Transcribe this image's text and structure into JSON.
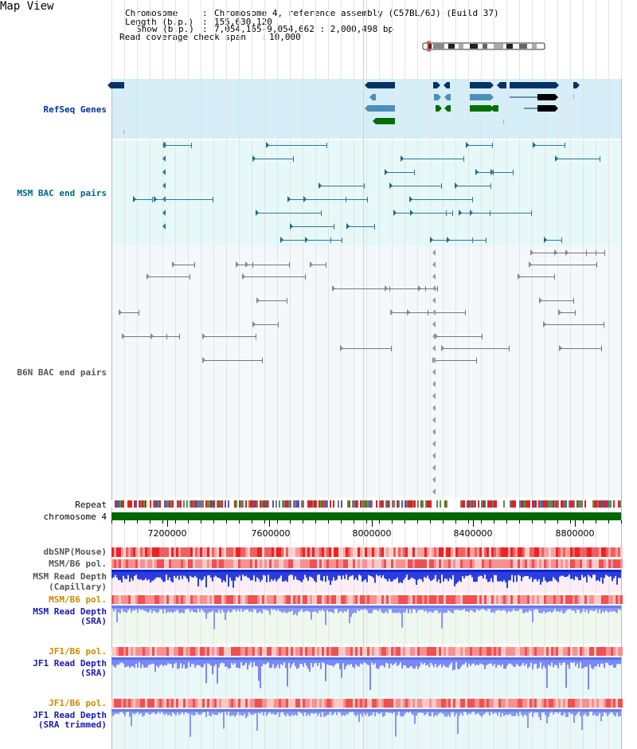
{
  "title": "Map View",
  "header": {
    "chromosome_key": "Chromosome",
    "chromosome_val": "Chromosome 4, reference assembly (C57BL/6J) (Build 37)",
    "length_key": "Length (b.p.)",
    "length_val": "155,630,120",
    "show_key": "Show (b.p.)",
    "show_val": "7,054,165-9,054,662 : 2,000,498 bp",
    "coverage_key": "Read coverage check span",
    "coverage_val": "10,000"
  },
  "tracks": {
    "refseq": "RefSeq Genes",
    "msm_bac": "MSM BAC end pairs",
    "b6n_bac": "B6N BAC end pairs",
    "repeat": "Repeat",
    "chromosome": "chromosome 4",
    "dbsnp": "dbSNP(Mouse)",
    "msm_b6_pol_1": "MSM/B6 pol.",
    "msm_read_depth_cap_1": "MSM Read Depth",
    "msm_read_depth_cap_2": "(Capillary)",
    "msm_b6_pol_2": "MSM/B6 pol.",
    "msm_read_depth_sra_1": "MSM Read Depth",
    "msm_read_depth_sra_2": "(SRA)",
    "jf1_b6_pol_1": "JF1/B6 pol.",
    "jf1_read_depth_sra_1": "JF1 Read Depth",
    "jf1_read_depth_sra_2": "(SRA)",
    "jf1_b6_pol_2": "JF1/B6 pol.",
    "jf1_read_depth_trim_1": "JF1 Read Depth",
    "jf1_read_depth_trim_2": "(SRA trimmed)"
  },
  "axis": {
    "ticks": [
      "7200000",
      "7600000",
      "8000000",
      "8400000",
      "8800000"
    ]
  },
  "colors": {
    "refseq_bg": "#d6eef8",
    "bac_bg": "#e6f8f8",
    "b6n_bg": "#f4f8fa",
    "gene_dark": "#003366",
    "gene_mid": "#4a90b8",
    "gene_green": "#007000",
    "chromosome_bar": "#006600",
    "depth_blue": "#2233dd"
  }
}
